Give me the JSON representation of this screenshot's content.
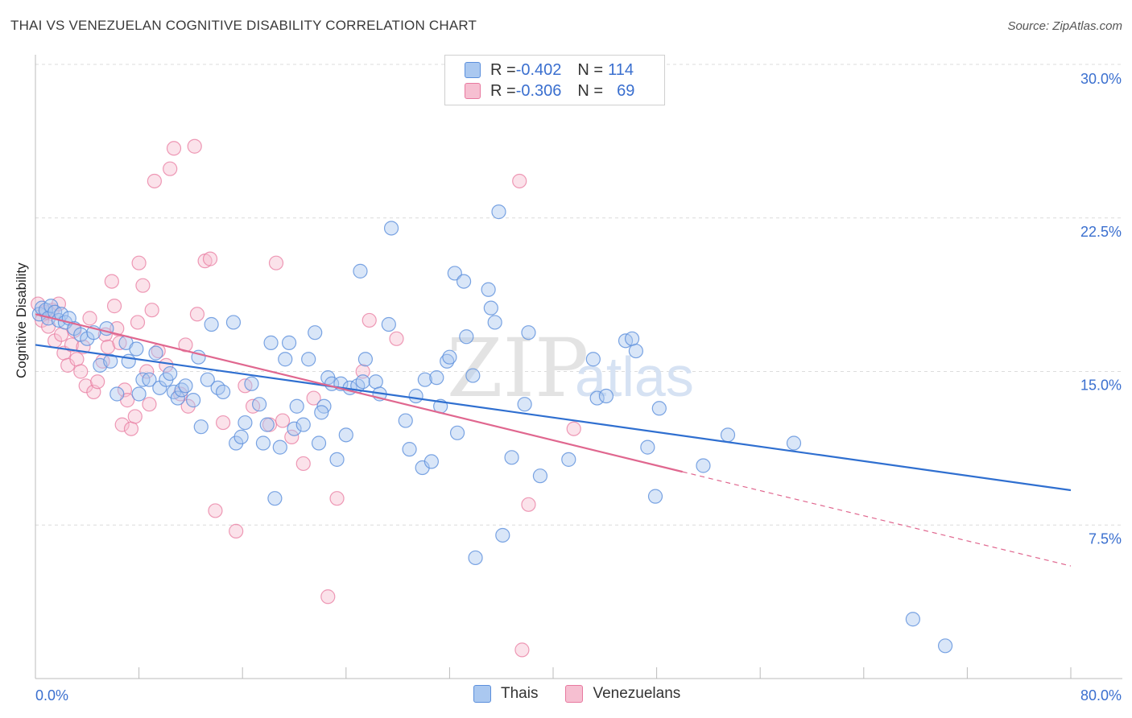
{
  "header": {
    "title": "THAI VS VENEZUELAN COGNITIVE DISABILITY CORRELATION CHART",
    "source": "Source: ZipAtlas.com"
  },
  "legend": {
    "thais": {
      "r_label": "R = ",
      "r_value": "-0.402",
      "n_label": "N = ",
      "n_value": "114"
    },
    "venezuelans": {
      "r_label": "R = ",
      "r_value": "-0.306",
      "n_label": "N = ",
      "n_value": "69"
    }
  },
  "watermark": {
    "zip": "ZIP",
    "atlas": "atlas"
  },
  "colors": {
    "thais": "#5b8fdc",
    "thais_fill": "#aac8f0",
    "venezuelans": "#e8799f",
    "venezuelans_fill": "#f6bfd1",
    "grid": "#dcdcdc",
    "tick_label": "#3a6fcf"
  },
  "chart_data": {
    "type": "scatter",
    "title": "THAI VS VENEZUELAN COGNITIVE DISABILITY CORRELATION CHART",
    "xlabel": "",
    "ylabel": "Cognitive Disability",
    "xlim": [
      0,
      80
    ],
    "ylim": [
      0,
      30
    ],
    "x_tick_labels": [
      "0.0%",
      "80.0%"
    ],
    "y_ticks": [
      7.5,
      15.0,
      22.5,
      30.0
    ],
    "y_tick_labels": [
      "7.5%",
      "15.0%",
      "22.5%",
      "30.0%"
    ],
    "grid": true,
    "legend_position": "top-center",
    "series": [
      {
        "name": "Thais",
        "trendline": {
          "x": [
            0,
            80
          ],
          "y": [
            16.3,
            9.2
          ]
        },
        "points": [
          [
            0.3,
            17.8
          ],
          [
            0.5,
            18.1
          ],
          [
            0.8,
            18.0
          ],
          [
            1.0,
            17.6
          ],
          [
            1.2,
            18.2
          ],
          [
            1.5,
            17.9
          ],
          [
            1.8,
            17.5
          ],
          [
            2.0,
            17.8
          ],
          [
            2.3,
            17.4
          ],
          [
            2.6,
            17.6
          ],
          [
            3.0,
            17.1
          ],
          [
            3.5,
            16.8
          ],
          [
            4.0,
            16.6
          ],
          [
            4.5,
            16.9
          ],
          [
            5.0,
            15.3
          ],
          [
            5.5,
            17.1
          ],
          [
            5.8,
            15.5
          ],
          [
            6.3,
            13.9
          ],
          [
            7.0,
            16.4
          ],
          [
            7.2,
            15.5
          ],
          [
            7.8,
            16.1
          ],
          [
            8.0,
            13.9
          ],
          [
            8.3,
            14.6
          ],
          [
            8.8,
            14.6
          ],
          [
            9.3,
            15.9
          ],
          [
            9.6,
            14.2
          ],
          [
            10.1,
            14.6
          ],
          [
            10.4,
            14.9
          ],
          [
            10.7,
            14.0
          ],
          [
            11.0,
            13.7
          ],
          [
            11.3,
            14.1
          ],
          [
            11.6,
            14.3
          ],
          [
            12.2,
            13.6
          ],
          [
            12.6,
            15.7
          ],
          [
            12.8,
            12.3
          ],
          [
            13.3,
            14.6
          ],
          [
            13.6,
            17.3
          ],
          [
            14.1,
            14.2
          ],
          [
            14.5,
            14.0
          ],
          [
            15.3,
            17.4
          ],
          [
            15.5,
            11.5
          ],
          [
            15.9,
            11.8
          ],
          [
            16.2,
            12.5
          ],
          [
            16.7,
            14.4
          ],
          [
            17.3,
            13.4
          ],
          [
            17.6,
            11.5
          ],
          [
            17.9,
            12.4
          ],
          [
            18.2,
            16.4
          ],
          [
            18.5,
            8.8
          ],
          [
            18.9,
            11.3
          ],
          [
            19.3,
            15.6
          ],
          [
            19.6,
            16.4
          ],
          [
            20.0,
            12.2
          ],
          [
            20.2,
            13.3
          ],
          [
            20.7,
            12.4
          ],
          [
            21.1,
            15.6
          ],
          [
            21.6,
            16.9
          ],
          [
            21.9,
            11.5
          ],
          [
            22.3,
            13.3
          ],
          [
            22.6,
            14.7
          ],
          [
            22.9,
            14.4
          ],
          [
            23.3,
            10.7
          ],
          [
            23.6,
            14.4
          ],
          [
            24.0,
            11.9
          ],
          [
            24.3,
            14.2
          ],
          [
            24.9,
            14.3
          ],
          [
            25.1,
            19.9
          ],
          [
            25.3,
            14.5
          ],
          [
            25.5,
            15.6
          ],
          [
            26.3,
            14.5
          ],
          [
            26.6,
            13.9
          ],
          [
            27.3,
            17.3
          ],
          [
            27.5,
            22.0
          ],
          [
            28.6,
            12.6
          ],
          [
            28.9,
            11.2
          ],
          [
            29.4,
            13.8
          ],
          [
            29.9,
            10.3
          ],
          [
            30.1,
            14.6
          ],
          [
            30.6,
            10.6
          ],
          [
            31.0,
            14.7
          ],
          [
            31.3,
            13.3
          ],
          [
            31.8,
            15.5
          ],
          [
            32.0,
            15.7
          ],
          [
            32.4,
            19.8
          ],
          [
            32.6,
            12.0
          ],
          [
            33.1,
            19.4
          ],
          [
            33.3,
            16.7
          ],
          [
            33.8,
            14.8
          ],
          [
            34.0,
            5.9
          ],
          [
            35.0,
            19.0
          ],
          [
            35.2,
            18.1
          ],
          [
            35.5,
            17.4
          ],
          [
            36.1,
            7.0
          ],
          [
            35.8,
            22.8
          ],
          [
            36.8,
            10.8
          ],
          [
            37.8,
            13.4
          ],
          [
            38.1,
            16.9
          ],
          [
            39.0,
            9.9
          ],
          [
            41.2,
            10.7
          ],
          [
            43.1,
            15.6
          ],
          [
            43.4,
            13.7
          ],
          [
            45.6,
            16.5
          ],
          [
            46.1,
            16.6
          ],
          [
            46.4,
            16.0
          ],
          [
            47.3,
            11.3
          ],
          [
            47.9,
            8.9
          ],
          [
            51.6,
            10.4
          ],
          [
            53.5,
            11.9
          ],
          [
            67.8,
            2.9
          ],
          [
            70.3,
            1.6
          ],
          [
            58.6,
            11.5
          ],
          [
            48.2,
            13.2
          ],
          [
            44.1,
            13.8
          ],
          [
            22.1,
            13.0
          ]
        ]
      },
      {
        "name": "Venezuelans",
        "trendline": {
          "x": [
            0,
            50
          ],
          "y": [
            17.8,
            10.1
          ],
          "dashed_extension": {
            "x": [
              50,
              80
            ],
            "y": [
              10.1,
              5.5
            ]
          }
        },
        "points": [
          [
            0.2,
            18.3
          ],
          [
            0.5,
            17.5
          ],
          [
            0.8,
            17.9
          ],
          [
            1.0,
            17.2
          ],
          [
            1.3,
            18.0
          ],
          [
            1.5,
            16.5
          ],
          [
            1.8,
            18.3
          ],
          [
            2.0,
            16.8
          ],
          [
            2.2,
            15.9
          ],
          [
            2.5,
            15.3
          ],
          [
            2.8,
            16.3
          ],
          [
            3.0,
            17.0
          ],
          [
            3.2,
            15.6
          ],
          [
            3.5,
            15.0
          ],
          [
            3.7,
            16.2
          ],
          [
            3.9,
            14.3
          ],
          [
            4.2,
            17.6
          ],
          [
            4.5,
            14.0
          ],
          [
            4.8,
            14.5
          ],
          [
            5.2,
            15.5
          ],
          [
            5.4,
            16.8
          ],
          [
            5.6,
            16.2
          ],
          [
            5.9,
            19.4
          ],
          [
            6.1,
            18.2
          ],
          [
            6.3,
            17.1
          ],
          [
            6.5,
            16.4
          ],
          [
            6.7,
            12.4
          ],
          [
            6.9,
            14.1
          ],
          [
            7.1,
            13.6
          ],
          [
            7.4,
            12.2
          ],
          [
            7.7,
            12.8
          ],
          [
            7.9,
            17.4
          ],
          [
            8.0,
            20.3
          ],
          [
            8.3,
            19.2
          ],
          [
            8.6,
            15.0
          ],
          [
            8.8,
            13.4
          ],
          [
            9.0,
            18.0
          ],
          [
            9.2,
            24.3
          ],
          [
            9.5,
            16.0
          ],
          [
            10.1,
            15.3
          ],
          [
            10.4,
            24.9
          ],
          [
            10.7,
            25.9
          ],
          [
            11.2,
            13.9
          ],
          [
            11.6,
            16.3
          ],
          [
            11.8,
            13.3
          ],
          [
            12.3,
            26.0
          ],
          [
            12.5,
            17.8
          ],
          [
            13.1,
            20.4
          ],
          [
            13.5,
            20.5
          ],
          [
            13.9,
            8.2
          ],
          [
            14.5,
            12.5
          ],
          [
            15.5,
            7.2
          ],
          [
            16.2,
            14.3
          ],
          [
            16.8,
            13.3
          ],
          [
            18.1,
            12.4
          ],
          [
            18.6,
            20.3
          ],
          [
            19.1,
            12.6
          ],
          [
            19.8,
            11.8
          ],
          [
            20.7,
            10.5
          ],
          [
            21.5,
            13.7
          ],
          [
            22.6,
            4.0
          ],
          [
            23.3,
            8.8
          ],
          [
            25.3,
            15.0
          ],
          [
            25.8,
            17.5
          ],
          [
            27.9,
            16.6
          ],
          [
            37.4,
            24.3
          ],
          [
            37.6,
            1.4
          ],
          [
            38.1,
            8.5
          ],
          [
            41.6,
            12.2
          ]
        ]
      }
    ]
  }
}
